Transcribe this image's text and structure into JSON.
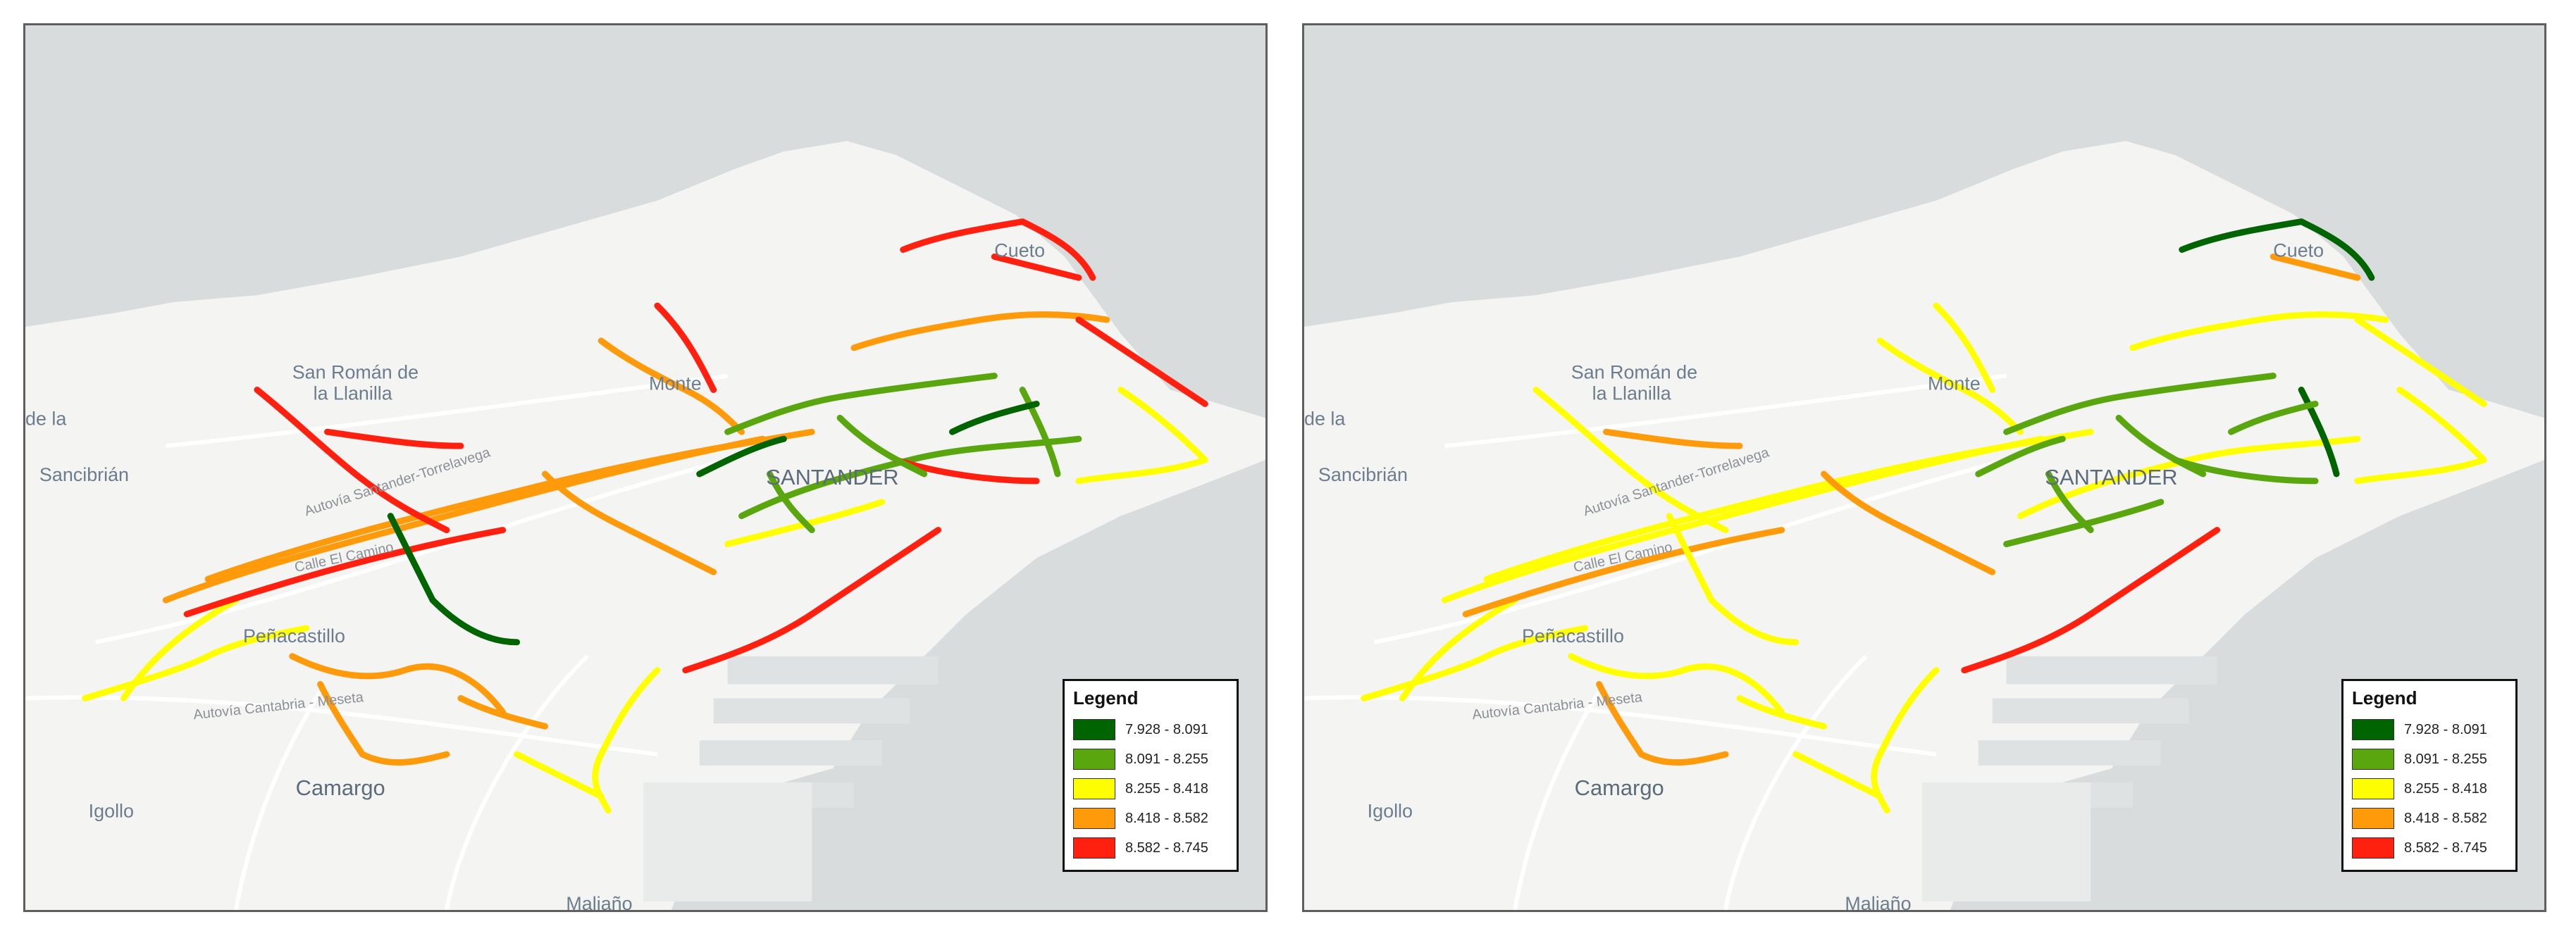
{
  "maps": [
    {
      "id": "left",
      "legend": {
        "title": "Legend",
        "classes": [
          {
            "label": "7.928 - 8.091",
            "color": "#006400"
          },
          {
            "label": "8.091 - 8.255",
            "color": "#5aa60e"
          },
          {
            "label": "8.255 - 8.418",
            "color": "#ffff00"
          },
          {
            "label": "8.418 - 8.582",
            "color": "#ff9a0a"
          },
          {
            "label": "8.582 - 8.745",
            "color": "#ff2010"
          }
        ]
      },
      "places": {
        "san_roman": "San Román de",
        "la_llanilla": "la Llanilla",
        "monte": "Monte",
        "sancibrian": "Sancibrián",
        "santander": "SANTANDER",
        "camargo": "Camargo",
        "igollo": "Igollo",
        "penacastillo": "Peñacastillo",
        "maliano": "Maliaño",
        "cueto": "Cueto",
        "de_la": "de la",
        "calle_el_camino": "Calle El Camino",
        "autovia_santander_torrelavega": "Autovía Santander-Torrelavega",
        "autovia_cantabria_meseta": "Autovía Cantabria - Meseta"
      }
    },
    {
      "id": "right",
      "legend": {
        "title": "Legend",
        "classes": [
          {
            "label": "7.928 - 8.091",
            "color": "#006400"
          },
          {
            "label": "8.091 - 8.255",
            "color": "#5aa60e"
          },
          {
            "label": "8.255 - 8.418",
            "color": "#ffff00"
          },
          {
            "label": "8.418 - 8.582",
            "color": "#ff9a0a"
          },
          {
            "label": "8.582 - 8.745",
            "color": "#ff2010"
          }
        ]
      },
      "places": {
        "san_roman": "San Román de",
        "la_llanilla": "la Llanilla",
        "monte": "Monte",
        "sancibrian": "Sancibrián",
        "santander": "SANTANDER",
        "camargo": "Camargo",
        "igollo": "Igollo",
        "penacastillo": "Peñacastillo",
        "maliano": "Maliaño",
        "cueto": "Cueto",
        "de_la": "de la",
        "calle_el_camino": "Calle El Camino",
        "autovia_santander_torrelavega": "Autovía Santander-Torrelavega",
        "autovia_cantabria_meseta": "Autovía Cantabria - Meseta"
      }
    }
  ]
}
